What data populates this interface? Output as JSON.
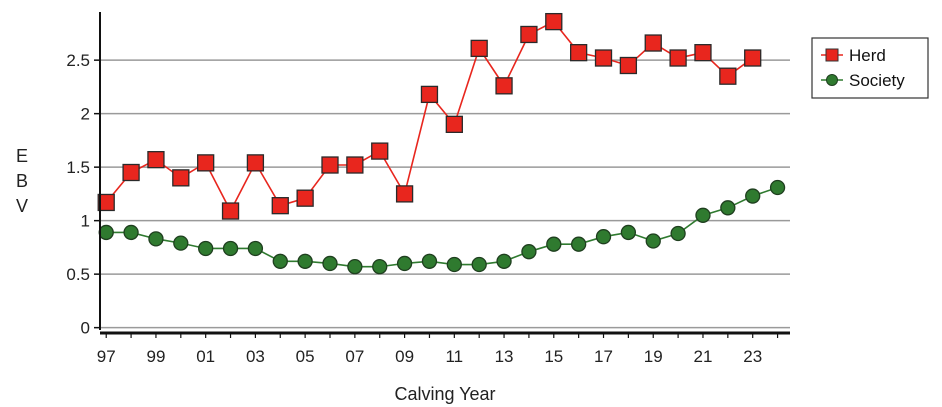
{
  "chart_data": {
    "type": "line",
    "title": "",
    "xlabel": "Calving Year",
    "ylabel": "E B V",
    "ylabel_letters": [
      "E",
      "B",
      "V"
    ],
    "x": [
      1997,
      1998,
      1999,
      2000,
      2001,
      2002,
      2003,
      2004,
      2005,
      2006,
      2007,
      2008,
      2009,
      2010,
      2011,
      2012,
      2013,
      2014,
      2015,
      2016,
      2017,
      2018,
      2019,
      2020,
      2021,
      2022,
      2023,
      2024
    ],
    "x_ticks": [
      1997,
      1999,
      2001,
      2003,
      2005,
      2007,
      2009,
      2011,
      2013,
      2015,
      2017,
      2019,
      2021,
      2023
    ],
    "x_tick_labels": [
      "97",
      "99",
      "01",
      "03",
      "05",
      "07",
      "09",
      "11",
      "13",
      "15",
      "17",
      "19",
      "21",
      "23"
    ],
    "xlim": [
      1996.75,
      2024.5
    ],
    "y_ticks": [
      0,
      0.5,
      1,
      1.5,
      2,
      2.5
    ],
    "y_tick_labels": [
      "0",
      "0.5",
      "1",
      "1.5",
      "2",
      "2.5"
    ],
    "ylim": [
      -0.05,
      2.95
    ],
    "grid": true,
    "legend_position": "top-right",
    "series": [
      {
        "name": "Herd",
        "color": "#e8261e",
        "marker": "square",
        "values": [
          1.17,
          1.45,
          1.57,
          1.4,
          1.54,
          1.09,
          1.54,
          1.14,
          1.21,
          1.52,
          1.52,
          1.65,
          1.25,
          2.18,
          1.9,
          2.61,
          2.26,
          2.74,
          2.86,
          2.57,
          2.52,
          2.45,
          2.66,
          2.52,
          2.57,
          2.35,
          2.52,
          null
        ]
      },
      {
        "name": "Society",
        "color": "#2f7a2f",
        "marker": "circle",
        "values": [
          0.89,
          0.89,
          0.83,
          0.79,
          0.74,
          0.74,
          0.74,
          0.62,
          0.62,
          0.6,
          0.57,
          0.57,
          0.6,
          0.62,
          0.59,
          0.59,
          0.62,
          0.71,
          0.78,
          0.78,
          0.85,
          0.89,
          0.81,
          0.88,
          1.05,
          1.12,
          1.23,
          1.31
        ]
      }
    ]
  }
}
